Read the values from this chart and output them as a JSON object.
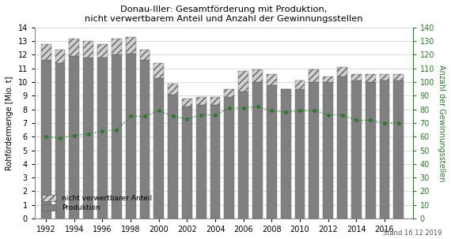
{
  "title": "Donau-Iller: Gesamtförderung mit Produktion,\nnicht verwertbarem Anteil und Anzahl der Gewinnungsstellen",
  "ylabel_left": "Rohfördermenge [Mio. t]",
  "ylabel_right": "Anzahl der Gewinnungsstellen",
  "footer": "Stand 16.12.2019",
  "years": [
    1992,
    1993,
    1994,
    1995,
    1996,
    1997,
    1998,
    1999,
    2000,
    2001,
    2002,
    2003,
    2004,
    2005,
    2006,
    2007,
    2008,
    2009,
    2010,
    2011,
    2012,
    2013,
    2014,
    2015,
    2016,
    2017
  ],
  "produktion": [
    11.6,
    11.4,
    11.9,
    11.8,
    11.8,
    12.0,
    12.1,
    11.6,
    10.3,
    9.1,
    8.2,
    8.3,
    8.3,
    8.9,
    9.3,
    10.0,
    9.8,
    9.5,
    9.5,
    10.0,
    10.0,
    10.4,
    10.1,
    10.0,
    10.1,
    10.1
  ],
  "nicht_verwertbar": [
    1.2,
    1.0,
    1.3,
    1.2,
    1.0,
    1.2,
    1.2,
    0.8,
    1.1,
    0.8,
    0.6,
    0.6,
    0.6,
    0.6,
    1.5,
    0.9,
    0.8,
    0.0,
    0.6,
    0.9,
    0.4,
    0.7,
    0.5,
    0.6,
    0.5,
    0.5
  ],
  "gewinnungsstellen": [
    60,
    59,
    61,
    62,
    64,
    65,
    75,
    75,
    79,
    75,
    73,
    76,
    76,
    81,
    81,
    82,
    79,
    78,
    79,
    79,
    76,
    76,
    72,
    72,
    70,
    70
  ],
  "bar_color_produktion": "#808080",
  "bar_color_nicht_verwertbar": "#d0d0d0",
  "hatch_nicht_verwertbar": "////",
  "line_color": "#2a7a2a",
  "background_color": "#ffffff",
  "ylim_left": [
    0,
    14
  ],
  "ylim_right": [
    0,
    140
  ],
  "yticks_left": [
    0,
    1,
    2,
    3,
    4,
    5,
    6,
    7,
    8,
    9,
    10,
    11,
    12,
    13,
    14
  ],
  "yticks_right": [
    0,
    10,
    20,
    30,
    40,
    50,
    60,
    70,
    80,
    90,
    100,
    110,
    120,
    130,
    140
  ],
  "xtick_years": [
    1992,
    1994,
    1996,
    1998,
    2000,
    2002,
    2004,
    2006,
    2008,
    2010,
    2012,
    2014,
    2016
  ],
  "bar_edge_color": "#606060",
  "bar_linewidth": 0.3
}
